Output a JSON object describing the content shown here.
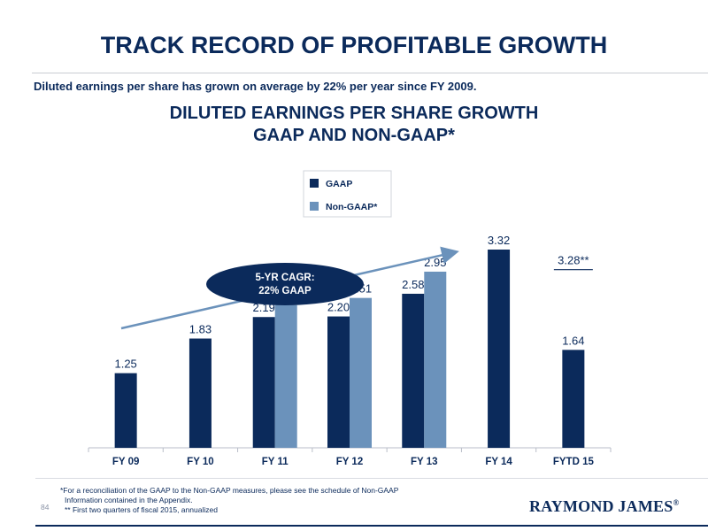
{
  "page": {
    "title": "TRACK RECORD OF PROFITABLE GROWTH",
    "subtitle": "Diluted earnings per share has grown on average by 22% per year since FY 2009.",
    "chart_title_line1": "DILUTED EARNINGS PER SHARE GROWTH",
    "chart_title_line2": "GAAP AND NON-GAAP*",
    "footnote_line1": "*For a reconciliation of the GAAP to the Non-GAAP measures, please see the schedule of Non-GAAP",
    "footnote_line2": "Information contained in the Appendix.",
    "footnote_line3": "** First two quarters of fiscal 2015, annualized",
    "page_number": "84",
    "logo_text": "RAYMOND JAMES",
    "logo_mark": "®"
  },
  "colors": {
    "gaap": "#0b2a5b",
    "non_gaap": "#6b92bb",
    "title": "#0b2a5b",
    "axis": "#b9bec8"
  },
  "chart_data": {
    "type": "bar",
    "categories": [
      "FY 09",
      "FY 10",
      "FY 11",
      "FY 12",
      "FY 13",
      "FY 14",
      "FYTD 15"
    ],
    "series": [
      {
        "name": "GAAP",
        "values": [
          1.25,
          1.83,
          2.19,
          2.2,
          2.58,
          3.32,
          1.64
        ]
      },
      {
        "name": "Non-GAAP*",
        "values": [
          null,
          null,
          2.39,
          2.51,
          2.95,
          null,
          null
        ]
      }
    ],
    "data_labels": {
      "GAAP": [
        "1.25",
        "1.83",
        "2.19",
        "2.20",
        "2.58",
        "3.32",
        "1.64"
      ],
      "Non-GAAP*": [
        null,
        null,
        "2.39",
        "2.51",
        "2.95",
        null,
        null
      ]
    },
    "extra_label": {
      "category": "FYTD 15",
      "text": "3.28**"
    },
    "annotation": {
      "line1": "5-YR CAGR:",
      "line2": "22% GAAP"
    },
    "legend_position": "top-center",
    "ylim": [
      0,
      3.7
    ],
    "grid": false
  }
}
